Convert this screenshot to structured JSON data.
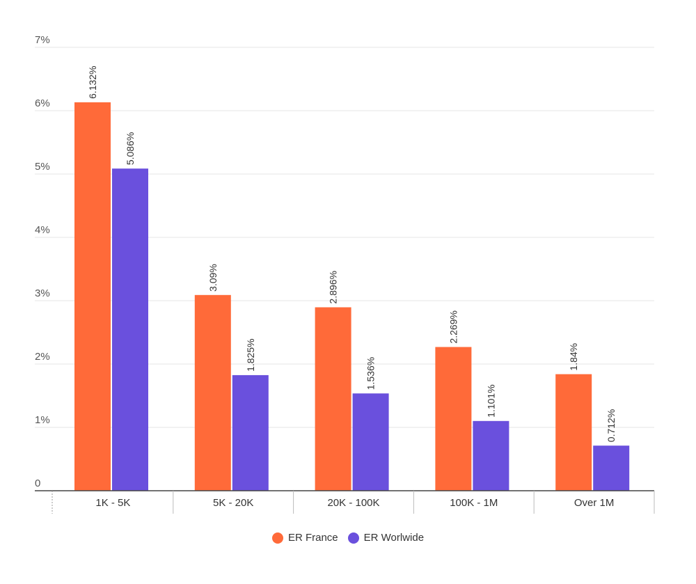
{
  "chart_data": {
    "type": "bar",
    "categories": [
      "1K - 5K",
      "5K - 20K",
      "20K - 100K",
      "100K - 1M",
      "Over 1M"
    ],
    "series": [
      {
        "name": "ER France",
        "color": "#ff6a39",
        "values": [
          6.132,
          3.09,
          2.896,
          2.269,
          1.84
        ],
        "labels": [
          "6.132%",
          "3.09%",
          "2.896%",
          "2.269%",
          "1.84%"
        ]
      },
      {
        "name": "ER Worlwide",
        "color": "#6a50dd",
        "values": [
          5.086,
          1.825,
          1.536,
          1.101,
          0.712
        ],
        "labels": [
          "5.086%",
          "1.825%",
          "1.536%",
          "1.101%",
          "0.712%"
        ]
      }
    ],
    "ylim": [
      0,
      7
    ],
    "yticks": [
      0,
      1,
      2,
      3,
      4,
      5,
      6,
      7
    ],
    "ytick_labels": [
      "0",
      "1%",
      "2%",
      "3%",
      "4%",
      "5%",
      "6%",
      "7%"
    ],
    "grid": true,
    "legend_position": "bottom-center"
  }
}
